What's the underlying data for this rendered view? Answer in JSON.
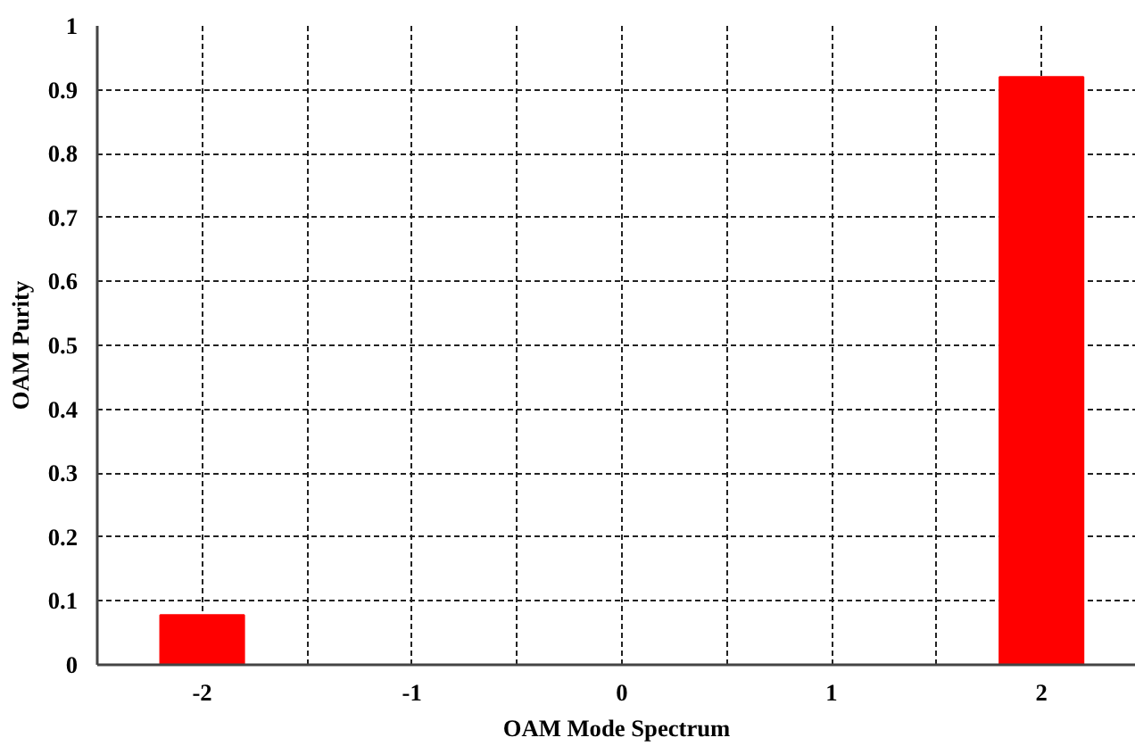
{
  "chart_data": {
    "type": "bar",
    "xlabel": "OAM Mode Spectrum",
    "ylabel": "OAM Purity",
    "categories": [
      "-2",
      "-1",
      "0",
      "1",
      "2"
    ],
    "values": [
      0.078,
      0,
      0,
      0,
      0.92
    ],
    "color": "#ff0000",
    "ylim": [
      0,
      1
    ],
    "yticks": [
      0,
      0.1,
      0.2,
      0.3,
      0.4,
      0.5,
      0.6,
      0.7,
      0.8,
      0.9,
      1
    ],
    "grid": true
  }
}
